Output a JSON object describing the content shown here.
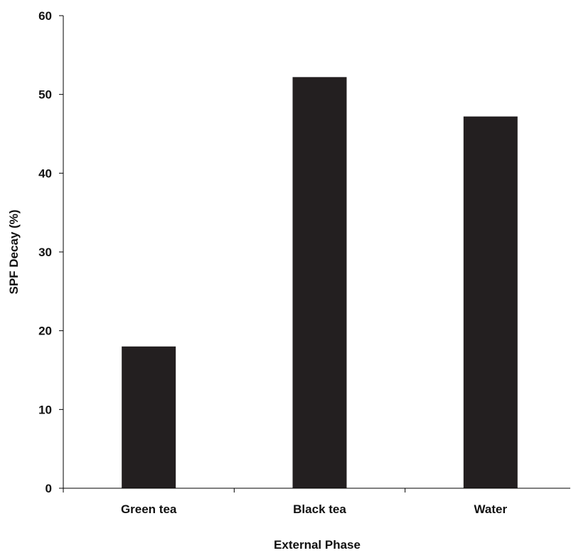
{
  "chart_data": {
    "type": "bar",
    "categories": [
      "Green tea",
      "Black tea",
      "Water"
    ],
    "values": [
      18,
      52.2,
      47.2
    ],
    "xlabel": "External Phase",
    "ylabel": "SPF Decay (%)",
    "ylim": [
      0,
      60
    ],
    "yticks": [
      "0",
      "10",
      "20",
      "30",
      "40",
      "50",
      "60"
    ],
    "grid": false,
    "bar_color": "#231f20",
    "axis_color": "#000000"
  }
}
